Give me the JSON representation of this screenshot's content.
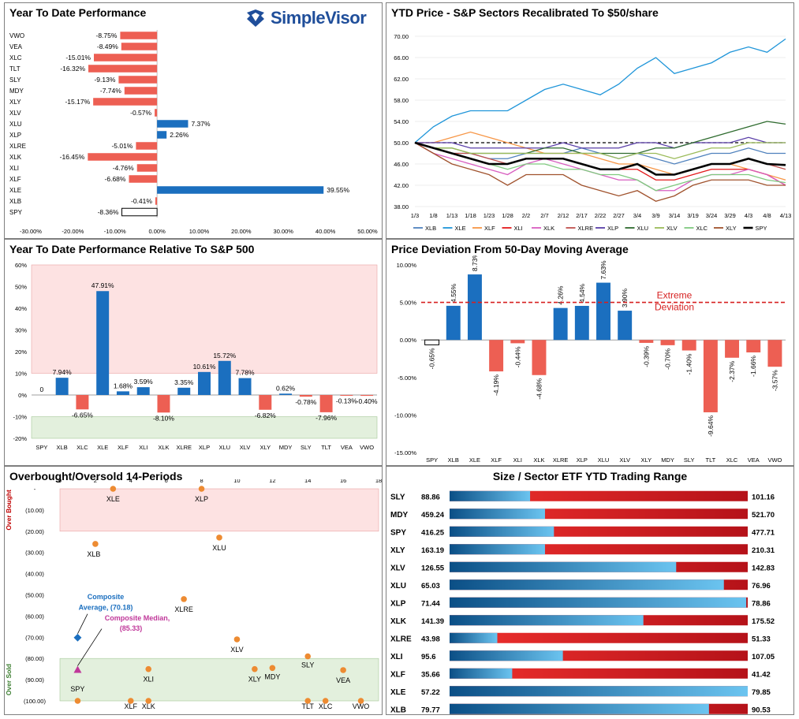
{
  "colors": {
    "positive": "#1b6fbf",
    "negative": "#ed5f53",
    "overbought": "#fde2e2",
    "oversold": "#e3f0dd",
    "extreme": "#d62020",
    "composite_avg": "#1b6fbf",
    "composite_med": "#c0389a"
  },
  "logo": {
    "text": "SimpleVisor"
  },
  "panels": {
    "ytd": {
      "title": "Year To Date Performance"
    },
    "sectors": {
      "title": "YTD Price - S&P Sectors Recalibrated To $50/share"
    },
    "relative": {
      "title": "Year To Date Performance Relative To S&P 500"
    },
    "deviation": {
      "title": "Price Deviation From 50-Day Moving Average",
      "annotation_line1": "Extreme",
      "annotation_line2": "Deviation"
    },
    "obos": {
      "title": "Overbought/Oversold 14-Periods",
      "overbought_label": "Over Bought",
      "oversold_label": "Over Sold",
      "avg_label_1": "Composite",
      "avg_label_2": "Average,  (70.18)",
      "med_label_1": "Composite Median,",
      "med_label_2": "(85.33)"
    },
    "range": {
      "title": "Size / Sector ETF YTD Trading Range"
    }
  },
  "chart_data": [
    {
      "id": "ytd",
      "type": "bar",
      "orientation": "horizontal",
      "title": "Year To Date Performance",
      "categories": [
        "VWO",
        "VEA",
        "XLC",
        "TLT",
        "SLY",
        "MDY",
        "XLY",
        "XLV",
        "XLU",
        "XLP",
        "XLRE",
        "XLK",
        "XLI",
        "XLF",
        "XLE",
        "XLB",
        "SPY"
      ],
      "values": [
        -8.75,
        -8.49,
        -15.01,
        -16.32,
        -9.13,
        -7.74,
        -15.17,
        -0.57,
        7.37,
        2.26,
        -5.01,
        -16.45,
        -4.76,
        -6.68,
        39.55,
        -0.41,
        -8.36
      ],
      "labels": [
        "-8.75%",
        "-8.49%",
        "-15.01%",
        "-16.32%",
        "-9.13%",
        "-7.74%",
        "-15.17%",
        "-0.57%",
        "7.37%",
        "2.26%",
        "-5.01%",
        "-16.45%",
        "-4.76%",
        "-6.68%",
        "39.55%",
        "-0.41%",
        "-8.36%"
      ],
      "xlim": [
        -30,
        50
      ],
      "xticks": [
        "-30.00%",
        "-20.00%",
        "-10.00%",
        "0.00%",
        "10.00%",
        "20.00%",
        "30.00%",
        "40.00%",
        "50.00%"
      ]
    },
    {
      "id": "sectors",
      "type": "line",
      "title": "YTD Price - S&P Sectors Recalibrated To $50/share",
      "x": [
        "1/3",
        "1/8",
        "1/13",
        "1/18",
        "1/23",
        "1/28",
        "2/2",
        "2/7",
        "2/12",
        "2/17",
        "2/22",
        "2/27",
        "3/4",
        "3/9",
        "3/14",
        "3/19",
        "3/24",
        "3/29",
        "4/3",
        "4/8",
        "4/13"
      ],
      "ylim": [
        38,
        70
      ],
      "yticks": [
        "38.00",
        "42.00",
        "46.00",
        "50.00",
        "54.00",
        "58.00",
        "62.00",
        "66.00",
        "70.00"
      ],
      "series": [
        {
          "name": "XLB",
          "color": "#4f81bd",
          "values": [
            50,
            49,
            48,
            48,
            47,
            47,
            48,
            48,
            48,
            49,
            48,
            47,
            48,
            47,
            46,
            47,
            48,
            48,
            49,
            48,
            48
          ]
        },
        {
          "name": "XLE",
          "color": "#1f95d9",
          "values": [
            50,
            53,
            55,
            56,
            56,
            56,
            58,
            60,
            61,
            60,
            59,
            61,
            64,
            66,
            63,
            64,
            65,
            67,
            68,
            67,
            69.5
          ]
        },
        {
          "name": "XLF",
          "color": "#f79646",
          "values": [
            50,
            50,
            51,
            52,
            51,
            50,
            49,
            48,
            48,
            48,
            47,
            46,
            46,
            45,
            44,
            45,
            46,
            46,
            45,
            44,
            43
          ]
        },
        {
          "name": "XLI",
          "color": "#e31a1c",
          "values": [
            50,
            49,
            48,
            47,
            46,
            46,
            47,
            47,
            47,
            46,
            45,
            45,
            45,
            43,
            43,
            44,
            45,
            45,
            45,
            44,
            42
          ]
        },
        {
          "name": "XLK",
          "color": "#d85ec0",
          "values": [
            50,
            48,
            47,
            46,
            45,
            44,
            46,
            47,
            46,
            45,
            44,
            43,
            43,
            41,
            41,
            43,
            44,
            44,
            45,
            44,
            42
          ]
        },
        {
          "name": "XLRE",
          "color": "#c0504d",
          "values": [
            50,
            49,
            48,
            48,
            47,
            46,
            47,
            47,
            47,
            46,
            45,
            45,
            46,
            44,
            44,
            45,
            46,
            46,
            47,
            46,
            45
          ]
        },
        {
          "name": "XLP",
          "color": "#5a3ea8",
          "values": [
            50,
            50,
            50,
            49,
            49,
            49,
            49,
            49,
            50,
            49,
            49,
            49,
            50,
            50,
            49,
            50,
            50,
            50,
            51,
            50,
            50
          ]
        },
        {
          "name": "XLU",
          "color": "#2e6b2e",
          "values": [
            50,
            49,
            49,
            48,
            48,
            48,
            48,
            49,
            49,
            48,
            48,
            48,
            48,
            49,
            49,
            50,
            51,
            52,
            53,
            54,
            53.5
          ]
        },
        {
          "name": "XLV",
          "color": "#9bbb59",
          "values": [
            50,
            49,
            49,
            48,
            48,
            48,
            48,
            48,
            48,
            48,
            48,
            47,
            48,
            48,
            47,
            48,
            49,
            49,
            50,
            50,
            50
          ]
        },
        {
          "name": "XLC",
          "color": "#7fc97f",
          "values": [
            50,
            49,
            48,
            47,
            46,
            45,
            46,
            46,
            45,
            45,
            44,
            44,
            43,
            41,
            42,
            43,
            44,
            44,
            44,
            43,
            42.5
          ]
        },
        {
          "name": "XLY",
          "color": "#a0522d",
          "values": [
            50,
            48,
            46,
            45,
            44,
            42,
            44,
            44,
            44,
            42,
            41,
            40,
            41,
            39,
            40,
            42,
            43,
            43,
            43,
            42,
            42
          ]
        },
        {
          "name": "SPY",
          "color": "#000000",
          "values": [
            50,
            49,
            48,
            47,
            46,
            46,
            47,
            47,
            47,
            46,
            45,
            45,
            46,
            44,
            44,
            45,
            46,
            46,
            47,
            46,
            45.8
          ]
        }
      ]
    },
    {
      "id": "relative",
      "type": "bar",
      "title": "Year To Date Performance Relative To S&P 500",
      "categories": [
        "SPY",
        "XLB",
        "XLC",
        "XLE",
        "XLF",
        "XLI",
        "XLK",
        "XLRE",
        "XLP",
        "XLU",
        "XLV",
        "XLY",
        "MDY",
        "SLY",
        "TLT",
        "VEA",
        "VWO"
      ],
      "values": [
        0,
        7.94,
        -6.65,
        47.91,
        1.68,
        3.59,
        -8.1,
        3.35,
        10.61,
        15.72,
        7.78,
        -6.82,
        0.62,
        -0.78,
        -7.96,
        -0.13,
        -0.4
      ],
      "labels": [
        "0",
        "7.94%",
        "-6.65%",
        "47.91%",
        "1.68%",
        "3.59%",
        "-8.10%",
        "3.35%",
        "10.61%",
        "15.72%",
        "7.78%",
        "-6.82%",
        "0.62%",
        "-0.78%",
        "-7.96%",
        "-0.13%",
        "-0.40%"
      ],
      "ylim": [
        -20,
        60
      ],
      "yticks": [
        "-20%",
        "-10%",
        "0%",
        "10%",
        "20%",
        "30%",
        "40%",
        "50%",
        "60%"
      ],
      "overbought_zone": [
        10,
        60
      ],
      "oversold_zone": [
        -20,
        -10
      ]
    },
    {
      "id": "deviation",
      "type": "bar",
      "title": "Price Deviation From 50-Day Moving Average",
      "categories": [
        "SPY",
        "XLB",
        "XLE",
        "XLF",
        "XLI",
        "XLK",
        "XLRE",
        "XLP",
        "XLU",
        "XLV",
        "XLY",
        "MDY",
        "SLY",
        "TLT",
        "XLC",
        "VEA",
        "VWO"
      ],
      "values": [
        -0.65,
        4.55,
        8.73,
        -4.19,
        -0.44,
        -4.68,
        4.26,
        4.54,
        7.63,
        3.9,
        -0.39,
        -0.7,
        -1.4,
        -9.64,
        -2.37,
        -1.66,
        -3.57
      ],
      "labels": [
        "-0.65%",
        "4.55%",
        "8.73%",
        "-4.19%",
        "-0.44%",
        "-4.68%",
        "4.26%",
        "4.54%",
        "7.63%",
        "3.90%",
        "-0.39%",
        "-0.70%",
        "-1.40%",
        "-9.64%",
        "-2.37%",
        "-1.66%",
        "-3.57%"
      ],
      "ylim": [
        -15,
        10
      ],
      "yticks": [
        "-15.00%",
        "-10.00%",
        "-5.00%",
        "0.00%",
        "5.00%",
        "10.00%"
      ],
      "extreme_line": 5
    },
    {
      "id": "obos",
      "type": "scatter",
      "title": "Overbought/Oversold 14-Periods",
      "xlim": [
        0,
        18
      ],
      "xticks": [
        "0",
        "2",
        "4",
        "6",
        "8",
        "10",
        "12",
        "14",
        "16",
        "18"
      ],
      "ylim": [
        0,
        100
      ],
      "yticks": [
        "-",
        "(10.00)",
        "(20.00)",
        "(30.00)",
        "(40.00)",
        "(50.00)",
        "(60.00)",
        "(70.00)",
        "(80.00)",
        "(90.00)",
        "(100.00)"
      ],
      "overbought_zone": [
        0,
        20
      ],
      "oversold_zone": [
        80,
        100
      ],
      "points": [
        {
          "name": "XLE",
          "x": 3,
          "y": 0
        },
        {
          "name": "XLP",
          "x": 8,
          "y": 0
        },
        {
          "name": "XLB",
          "x": 2,
          "y": 26
        },
        {
          "name": "XLU",
          "x": 9,
          "y": 23
        },
        {
          "name": "XLRE",
          "x": 7,
          "y": 52
        },
        {
          "name": "XLV",
          "x": 10,
          "y": 71
        },
        {
          "name": "SLY",
          "x": 14,
          "y": 79
        },
        {
          "name": "XLY",
          "x": 11,
          "y": 85
        },
        {
          "name": "MDY",
          "x": 12,
          "y": 84.5
        },
        {
          "name": "XLI",
          "x": 5,
          "y": 85
        },
        {
          "name": "VEA",
          "x": 16,
          "y": 85.5
        },
        {
          "name": "SPY",
          "x": 1,
          "y": 100
        },
        {
          "name": "XLF",
          "x": 4,
          "y": 100
        },
        {
          "name": "XLK",
          "x": 5,
          "y": 100
        },
        {
          "name": "TLT",
          "x": 14,
          "y": 100
        },
        {
          "name": "XLC",
          "x": 15,
          "y": 100
        },
        {
          "name": "VWO",
          "x": 17,
          "y": 100
        }
      ],
      "composite_average": {
        "x": 1,
        "y": 70.18
      },
      "composite_median": {
        "x": 1,
        "y": 85.33
      }
    },
    {
      "id": "range",
      "type": "table",
      "title": "Size / Sector ETF YTD Trading Range",
      "rows": [
        {
          "symbol": "SLY",
          "low": "88.86",
          "high": "101.16",
          "position": 0.27
        },
        {
          "symbol": "MDY",
          "low": "459.24",
          "high": "521.70",
          "position": 0.32
        },
        {
          "symbol": "SPY",
          "low": "416.25",
          "high": "477.71",
          "position": 0.35
        },
        {
          "symbol": "XLY",
          "low": "163.19",
          "high": "210.31",
          "position": 0.32
        },
        {
          "symbol": "XLV",
          "low": "126.55",
          "high": "142.83",
          "position": 0.76
        },
        {
          "symbol": "XLU",
          "low": "65.03",
          "high": "76.96",
          "position": 0.92
        },
        {
          "symbol": "XLP",
          "low": "71.44",
          "high": "78.86",
          "position": 0.995
        },
        {
          "symbol": "XLK",
          "low": "141.39",
          "high": "175.52",
          "position": 0.65
        },
        {
          "symbol": "XLRE",
          "low": "43.98",
          "high": "51.33",
          "position": 0.16
        },
        {
          "symbol": "XLI",
          "low": "95.6",
          "high": "107.05",
          "position": 0.38
        },
        {
          "symbol": "XLF",
          "low": "35.66",
          "high": "41.42",
          "position": 0.21
        },
        {
          "symbol": "XLE",
          "low": "57.22",
          "high": "79.85",
          "position": 1.0
        },
        {
          "symbol": "XLB",
          "low": "79.77",
          "high": "90.53",
          "position": 0.87
        }
      ]
    }
  ]
}
